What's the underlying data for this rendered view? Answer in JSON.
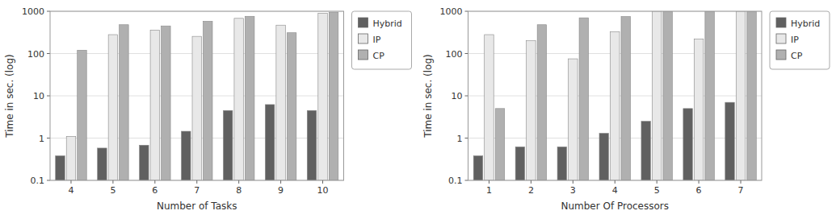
{
  "chart_data": [
    {
      "type": "bar",
      "xlabel": "Number of Tasks",
      "ylabel": "Time in sec. (log)",
      "categories": [
        "4",
        "5",
        "6",
        "7",
        "8",
        "9",
        "10"
      ],
      "series": [
        {
          "name": "Hybrid",
          "color": "#606060",
          "values": [
            0.38,
            0.58,
            0.68,
            1.45,
            4.5,
            6.2,
            4.5
          ]
        },
        {
          "name": "IP",
          "color": "#e8e8e8",
          "values": [
            1.1,
            280,
            360,
            255,
            680,
            470,
            900
          ]
        },
        {
          "name": "CP",
          "color": "#b0b0b0",
          "values": [
            120,
            480,
            450,
            580,
            760,
            310,
            950
          ]
        }
      ],
      "ylim": [
        0.1,
        1000
      ],
      "yticks": [
        0.1,
        1,
        10,
        100,
        1000
      ],
      "log": "y",
      "grid": true,
      "legend": "right"
    },
    {
      "type": "bar",
      "xlabel": "Number Of Processors",
      "ylabel": "Time in sec. (log)",
      "categories": [
        "1",
        "2",
        "3",
        "4",
        "5",
        "6",
        "7"
      ],
      "series": [
        {
          "name": "Hybrid",
          "color": "#606060",
          "values": [
            0.38,
            0.62,
            0.62,
            1.3,
            2.5,
            5.0,
            7.0
          ]
        },
        {
          "name": "IP",
          "color": "#e8e8e8",
          "values": [
            280,
            200,
            75,
            330,
            1000,
            220,
            1000
          ]
        },
        {
          "name": "CP",
          "color": "#b0b0b0",
          "values": [
            5.0,
            480,
            700,
            750,
            1000,
            1000,
            1000
          ]
        }
      ],
      "ylim": [
        0.1,
        1000
      ],
      "yticks": [
        0.1,
        1,
        10,
        100,
        1000
      ],
      "log": "y",
      "grid": true,
      "legend": "right"
    }
  ]
}
